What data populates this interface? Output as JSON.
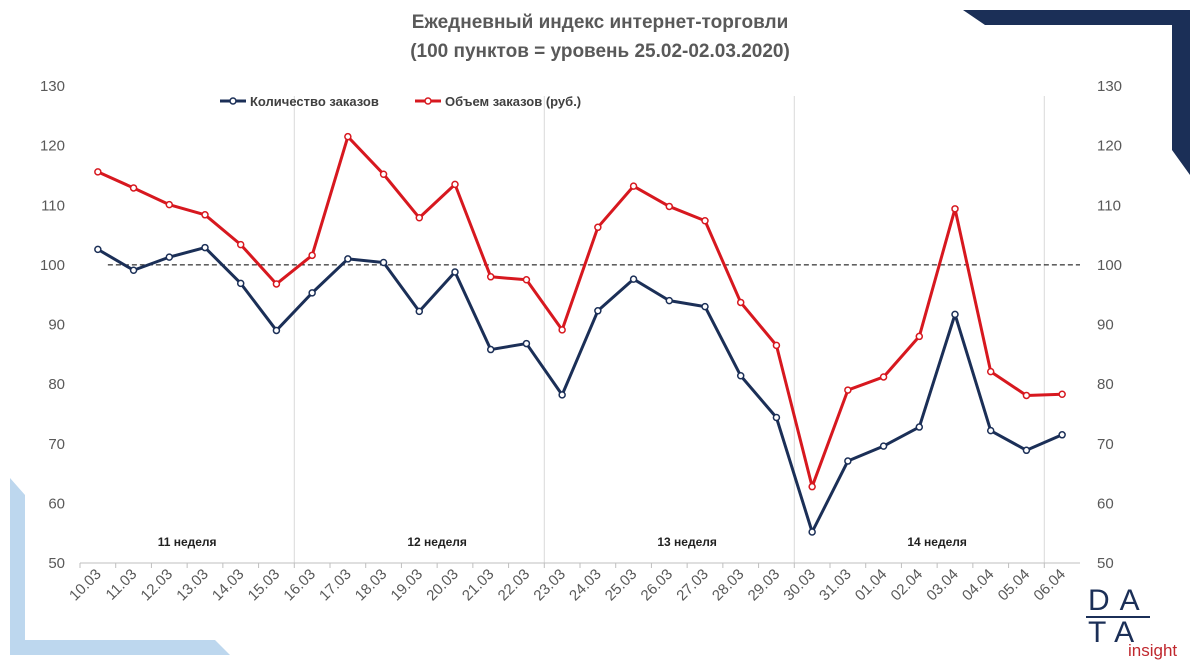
{
  "chart_data": {
    "type": "line",
    "title": "Ежедневный индекс интернет-торговли",
    "subtitle": "(100 пунктов = уровень 25.02-02.03.2020)",
    "categories": [
      "10.03",
      "11.03",
      "12.03",
      "13.03",
      "14.03",
      "15.03",
      "16.03",
      "17.03",
      "18.03",
      "19.03",
      "20.03",
      "21.03",
      "22.03",
      "23.03",
      "24.03",
      "25.03",
      "26.03",
      "27.03",
      "28.03",
      "29.03",
      "30.03",
      "31.03",
      "01.04",
      "02.04",
      "03.04",
      "04.04",
      "05.04",
      "06.04"
    ],
    "series": [
      {
        "name": "Количество заказов",
        "color": "#1b2f57",
        "values": [
          102.6,
          99.1,
          101.3,
          102.9,
          96.9,
          89.0,
          95.3,
          101.0,
          100.4,
          92.2,
          98.8,
          85.8,
          86.8,
          78.2,
          92.3,
          97.6,
          94.0,
          93.0,
          81.4,
          74.4,
          55.2,
          67.1,
          69.6,
          72.8,
          91.7,
          72.2,
          68.9,
          71.5
        ]
      },
      {
        "name": "Объем заказов (руб.)",
        "color": "#d7181f",
        "values": [
          115.6,
          112.9,
          110.1,
          108.4,
          103.4,
          96.8,
          101.6,
          121.5,
          115.2,
          107.9,
          113.5,
          98.0,
          97.5,
          89.1,
          106.3,
          113.2,
          109.8,
          107.4,
          93.7,
          86.5,
          62.8,
          79.0,
          81.2,
          88.0,
          109.4,
          82.1,
          78.1,
          78.3
        ]
      }
    ],
    "yticks": [
      50,
      60,
      70,
      80,
      90,
      100,
      110,
      120,
      130
    ],
    "ylim": [
      50,
      130
    ],
    "y2ticks": [
      50,
      60,
      70,
      80,
      90,
      100,
      110,
      120,
      130
    ],
    "reference_line": 100,
    "week_labels": [
      "11 неделя",
      "12 неделя",
      "13 неделя",
      "14 неделя"
    ],
    "legend_position": "top-left",
    "grid": false
  },
  "logo": {
    "line1": "DA",
    "line2": "TA",
    "sub": "insight"
  }
}
